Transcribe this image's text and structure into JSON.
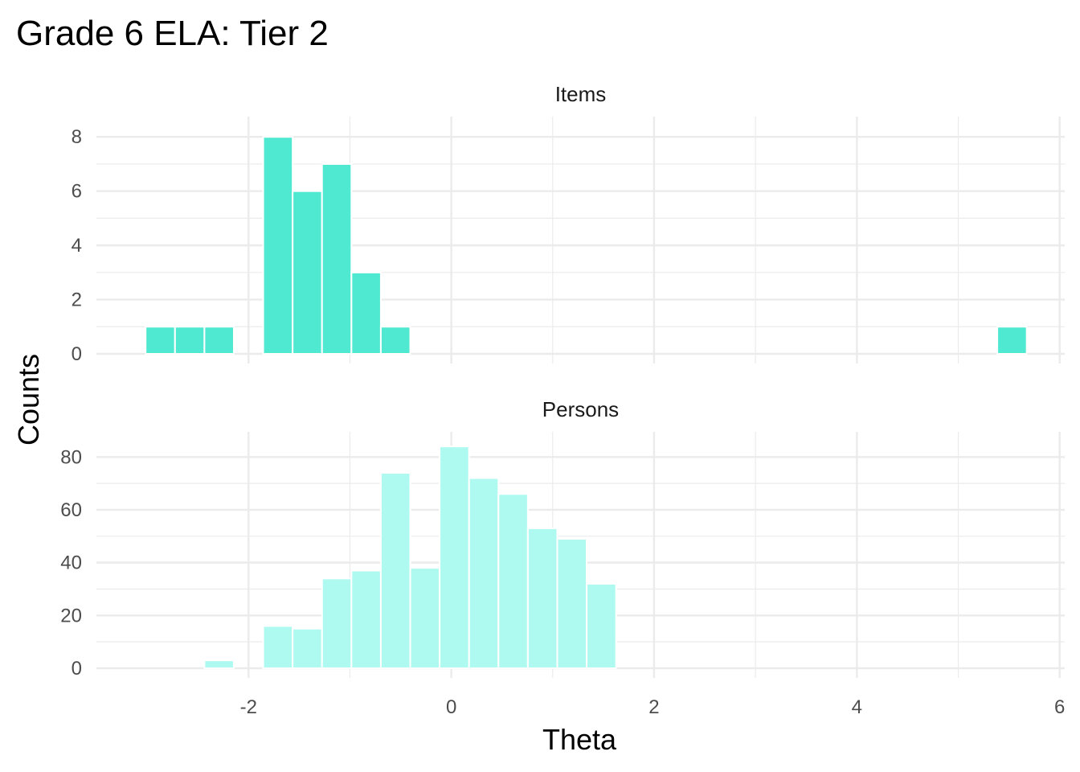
{
  "chart_data": {
    "type": "bar",
    "title": "Grade 6 ELA: Tier 2",
    "xlabel": "Theta",
    "ylabel": "Counts",
    "xlim": [
      -3.5,
      6.05
    ],
    "x_ticks": [
      -2,
      0,
      2,
      4,
      6
    ],
    "x_tick_labels": [
      "-2",
      "0",
      "2",
      "4",
      "6"
    ],
    "bin_width": 0.29,
    "grid": true,
    "colors": {
      "Items": "#4fe8d0",
      "Persons": "#aefaf0"
    },
    "panels": [
      {
        "name": "Items",
        "ylim": [
          0,
          8.6
        ],
        "y_ticks": [
          0,
          2,
          4,
          6,
          8
        ],
        "y_tick_labels": [
          "0",
          "2",
          "4",
          "6",
          "8"
        ],
        "bins": [
          {
            "x": -2.87,
            "count": 1
          },
          {
            "x": -2.58,
            "count": 1
          },
          {
            "x": -2.29,
            "count": 1
          },
          {
            "x": -1.71,
            "count": 8
          },
          {
            "x": -1.42,
            "count": 6
          },
          {
            "x": -1.13,
            "count": 7
          },
          {
            "x": -0.84,
            "count": 3
          },
          {
            "x": -0.55,
            "count": 1
          },
          {
            "x": 5.53,
            "count": 1
          }
        ]
      },
      {
        "name": "Persons",
        "ylim": [
          0,
          88
        ],
        "y_ticks": [
          0,
          20,
          40,
          60,
          80
        ],
        "y_tick_labels": [
          "0",
          "20",
          "40",
          "60",
          "80"
        ],
        "bins": [
          {
            "x": -2.29,
            "count": 3
          },
          {
            "x": -1.71,
            "count": 16
          },
          {
            "x": -1.42,
            "count": 15
          },
          {
            "x": -1.13,
            "count": 34
          },
          {
            "x": -0.84,
            "count": 37
          },
          {
            "x": -0.55,
            "count": 74
          },
          {
            "x": -0.26,
            "count": 38
          },
          {
            "x": 0.03,
            "count": 84
          },
          {
            "x": 0.32,
            "count": 72
          },
          {
            "x": 0.61,
            "count": 66
          },
          {
            "x": 0.9,
            "count": 53
          },
          {
            "x": 1.19,
            "count": 49
          },
          {
            "x": 1.48,
            "count": 32
          }
        ]
      }
    ]
  }
}
